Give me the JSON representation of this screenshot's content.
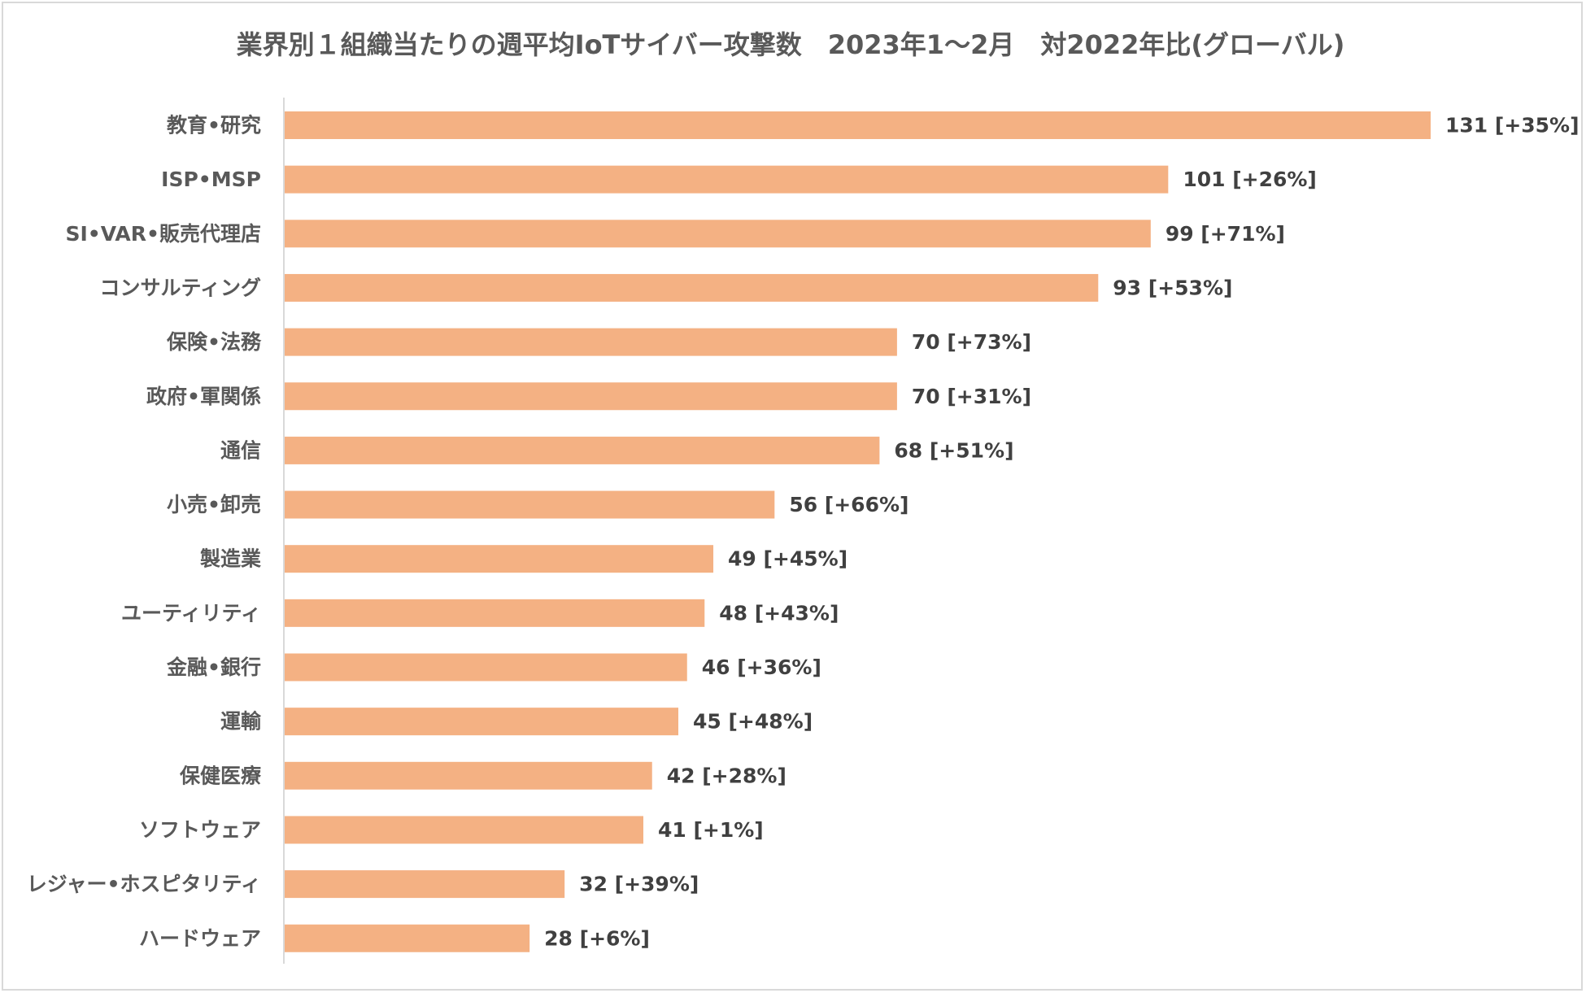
{
  "chart_data": {
    "type": "bar",
    "orientation": "horizontal",
    "title": "業界別１組織当たりの週平均IoTサイバー攻撃数　2023年1～2月　対2022年比(グローバル)",
    "categories": [
      "教育•研究",
      "ISP•MSP",
      "SI•VAR•販売代理店",
      "コンサルティング",
      "保険•法務",
      "政府•軍関係",
      "通信",
      "小売•卸売",
      "製造業",
      "ユーティリティ",
      "金融•銀行",
      "運輸",
      "保健医療",
      "ソフトウェア",
      "レジャー•ホスピタリティ",
      "ハードウェア"
    ],
    "values": [
      131,
      101,
      99,
      93,
      70,
      70,
      68,
      56,
      49,
      48,
      46,
      45,
      42,
      41,
      32,
      28
    ],
    "data_labels": [
      "131 [+35%]",
      "101 [+26%]",
      "99 [+71%]",
      "93 [+53%]",
      "70 [+73%]",
      "70 [+31%]",
      "68 [+51%]",
      "56 [+66%]",
      "49 [+45%]",
      "48 [+43%]",
      "46 [+36%]",
      "45 [+48%]",
      "42 [+28%]",
      "41 [+1%]",
      "32 [+39%]",
      "28 [+6%]"
    ],
    "bar_color": "#f4b183",
    "grid": false,
    "legend": "none"
  }
}
